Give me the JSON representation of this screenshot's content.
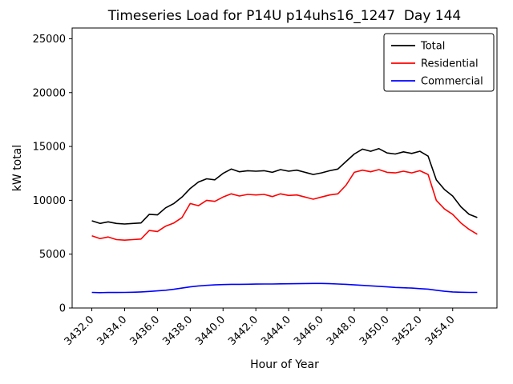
{
  "chart_data": {
    "type": "line",
    "title": "Timeseries Load for P14U p14uhs16_1247  Day 144",
    "xlabel": "Hour of Year",
    "ylabel": "kW total",
    "xlim": [
      3430.8,
      3456.7
    ],
    "ylim": [
      0,
      26000
    ],
    "grid": false,
    "legend_position": "upper right",
    "yticks": [
      0,
      5000,
      10000,
      15000,
      20000,
      25000
    ],
    "ytick_labels": [
      "0",
      "5000",
      "10000",
      "15000",
      "20000",
      "25000"
    ],
    "xticks": [
      3432,
      3434,
      3436,
      3438,
      3440,
      3442,
      3444,
      3446,
      3448,
      3450,
      3452,
      3454
    ],
    "xtick_labels": [
      "3432.0",
      "3434.0",
      "3436.0",
      "3438.0",
      "3440.0",
      "3442.0",
      "3444.0",
      "3446.0",
      "3448.0",
      "3450.0",
      "3452.0",
      "3454.0"
    ],
    "x": [
      3432.0,
      3432.5,
      3433.0,
      3433.5,
      3434.0,
      3434.5,
      3435.0,
      3435.5,
      3436.0,
      3436.5,
      3437.0,
      3437.5,
      3438.0,
      3438.5,
      3439.0,
      3439.5,
      3440.0,
      3440.5,
      3441.0,
      3441.5,
      3442.0,
      3442.5,
      3443.0,
      3443.5,
      3444.0,
      3444.5,
      3445.0,
      3445.5,
      3446.0,
      3446.5,
      3447.0,
      3447.5,
      3448.0,
      3448.5,
      3449.0,
      3449.5,
      3450.0,
      3450.5,
      3451.0,
      3451.5,
      3452.0,
      3452.5,
      3453.0,
      3453.5,
      3454.0,
      3454.5,
      3455.0,
      3455.5
    ],
    "series": [
      {
        "name": "Total",
        "color": "#000000",
        "values": [
          8100,
          7850,
          8000,
          7850,
          7800,
          7850,
          7900,
          8700,
          8650,
          9300,
          9700,
          10300,
          11100,
          11700,
          12000,
          11900,
          12500,
          12900,
          12650,
          12750,
          12700,
          12750,
          12600,
          12850,
          12700,
          12800,
          12600,
          12400,
          12550,
          12750,
          12900,
          13600,
          14300,
          14750,
          14550,
          14800,
          14400,
          14300,
          14500,
          14350,
          14550,
          14100,
          11900,
          11000,
          10400,
          9400,
          8700,
          8400
        ]
      },
      {
        "name": "Residential",
        "color": "#ff0000",
        "values": [
          6700,
          6450,
          6600,
          6350,
          6300,
          6350,
          6400,
          7200,
          7100,
          7600,
          7900,
          8400,
          9700,
          9500,
          10000,
          9900,
          10300,
          10600,
          10400,
          10550,
          10500,
          10550,
          10350,
          10600,
          10450,
          10500,
          10300,
          10100,
          10300,
          10500,
          10600,
          11400,
          12600,
          12800,
          12650,
          12850,
          12600,
          12550,
          12700,
          12550,
          12750,
          12400,
          10000,
          9200,
          8700,
          7900,
          7300,
          6850
        ]
      },
      {
        "name": "Commercial",
        "color": "#0000ff",
        "values": [
          1450,
          1430,
          1440,
          1440,
          1450,
          1460,
          1490,
          1540,
          1590,
          1650,
          1740,
          1850,
          1960,
          2050,
          2100,
          2150,
          2180,
          2200,
          2200,
          2210,
          2220,
          2230,
          2230,
          2240,
          2250,
          2260,
          2270,
          2280,
          2280,
          2260,
          2230,
          2200,
          2150,
          2100,
          2060,
          2010,
          1960,
          1910,
          1880,
          1850,
          1800,
          1750,
          1650,
          1550,
          1490,
          1460,
          1450,
          1450
        ]
      }
    ]
  }
}
